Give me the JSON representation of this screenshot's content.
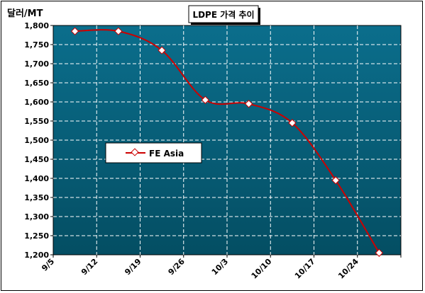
{
  "chart_data": {
    "type": "line",
    "title": "LDPE 가격 추이",
    "unit_label": "달러/MT",
    "xlabel": "",
    "ylabel": "",
    "categories": [
      "9/5",
      "9/12",
      "9/19",
      "9/26",
      "10/3",
      "10/10",
      "10/17",
      "10/24"
    ],
    "series": [
      {
        "name": "FE Asia",
        "values": [
          1785,
          1785,
          1735,
          1605,
          1595,
          1545,
          1395,
          1205
        ]
      }
    ],
    "ylim": [
      1200,
      1800
    ],
    "yticks": [
      1200,
      1250,
      1300,
      1350,
      1400,
      1450,
      1500,
      1550,
      1600,
      1650,
      1700,
      1750,
      1800
    ],
    "ytick_labels": [
      "1,200",
      "1,250",
      "1,300",
      "1,350",
      "1,400",
      "1,450",
      "1,500",
      "1,550",
      "1,600",
      "1,650",
      "1,700",
      "1,750",
      "1,800"
    ],
    "grid": true,
    "legend_position": "middle-left",
    "colors": {
      "plot_top": "#0b6e8c",
      "plot_bottom": "#044e63",
      "line": "#cc0000",
      "marker_fill": "#ffffff",
      "grid": "#ffffff"
    }
  }
}
